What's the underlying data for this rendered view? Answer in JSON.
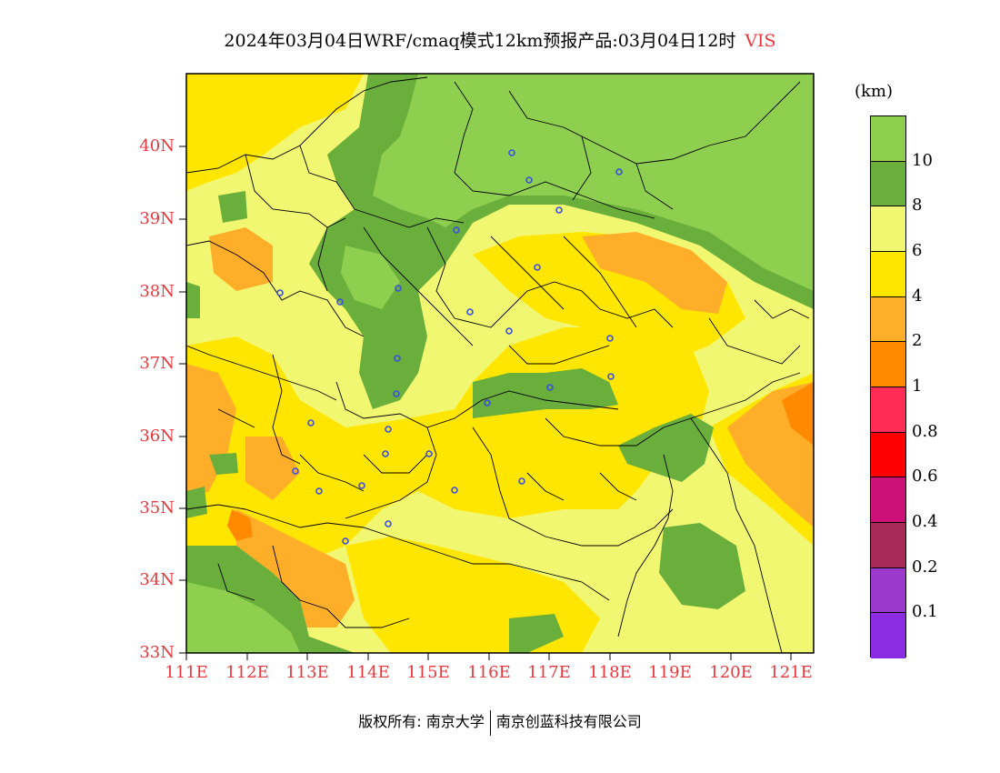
{
  "title": "2024年03月04日WRF/cmaq模式12km预报产品:03月04日12时",
  "variable": "VIS",
  "unit": "(km)",
  "latitude_labels": [
    "40N",
    "39N",
    "38N",
    "37N",
    "36N",
    "35N",
    "34N",
    "33N"
  ],
  "longitude_labels": [
    "111E",
    "112E",
    "113E",
    "114E",
    "115E",
    "116E",
    "117E",
    "118E",
    "119E",
    "120E",
    "121E"
  ],
  "legend": {
    "labels": [
      "10",
      "8",
      "6",
      "4",
      "2",
      "1",
      "0.8",
      "0.6",
      "0.4",
      "0.2",
      "0.1"
    ],
    "colors": [
      "#8ecf4f",
      "#6aae3b",
      "#f2f771",
      "#ffe600",
      "#ffae2a",
      "#ff8a00",
      "#ff2d55",
      "#ff0000",
      "#cc1277",
      "#a62b57",
      "#9b39cd",
      "#8b2be2"
    ]
  },
  "footer": {
    "copyright": "版权所有: 南京大学",
    "company": "南京创蓝科技有限公司"
  }
}
